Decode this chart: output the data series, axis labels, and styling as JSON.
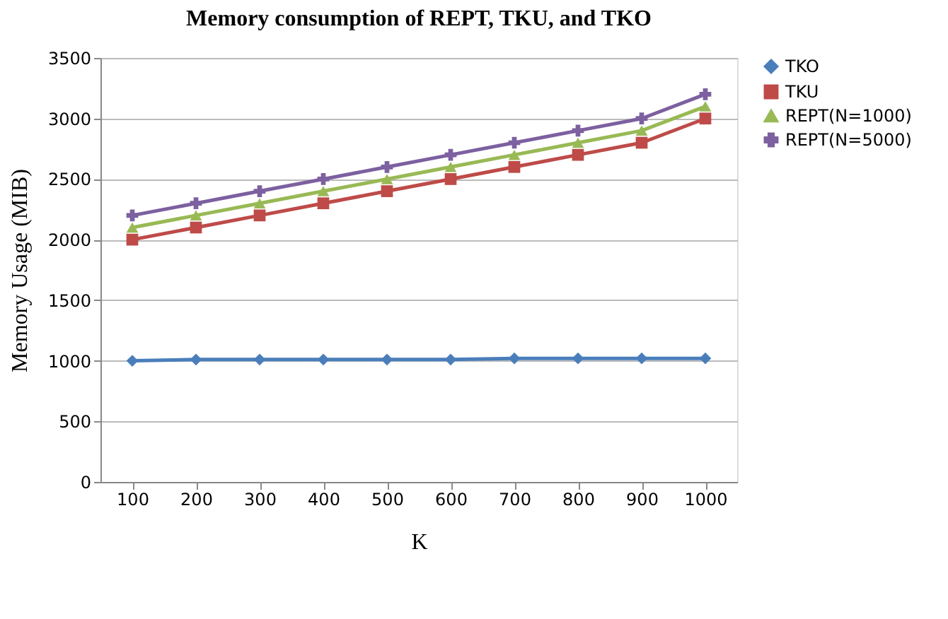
{
  "chart_data": {
    "type": "line",
    "title": "Memory consumption  of REPT, TKU, and TKO",
    "xlabel": "K",
    "ylabel": "Memory Usage (MIB)",
    "categories": [
      "100",
      "200",
      "300",
      "400",
      "500",
      "600",
      "700",
      "800",
      "900",
      "1000"
    ],
    "series": [
      {
        "name": "TKO",
        "color": "#4a7ebb",
        "marker": "diamond",
        "values": [
          1000,
          1010,
          1010,
          1010,
          1010,
          1010,
          1020,
          1020,
          1020,
          1020
        ]
      },
      {
        "name": "TKU",
        "color": "#be4b48",
        "marker": "square",
        "values": [
          2000,
          2100,
          2200,
          2300,
          2400,
          2500,
          2600,
          2700,
          2800,
          3000
        ]
      },
      {
        "name": "REPT(N=1000)",
        "color": "#98b954",
        "marker": "triangle",
        "values": [
          2100,
          2200,
          2300,
          2400,
          2500,
          2600,
          2700,
          2800,
          2900,
          3100
        ]
      },
      {
        "name": "REPT(N=5000)",
        "color": "#7d60a0",
        "marker": "cross",
        "values": [
          2200,
          2300,
          2400,
          2500,
          2600,
          2700,
          2800,
          2900,
          3000,
          3200
        ]
      }
    ],
    "ylim": [
      0,
      3500
    ],
    "yticks": [
      0,
      500,
      1000,
      1500,
      2000,
      2500,
      3000,
      3500
    ],
    "grid": "y",
    "legend": "right",
    "line_style": "solid"
  }
}
